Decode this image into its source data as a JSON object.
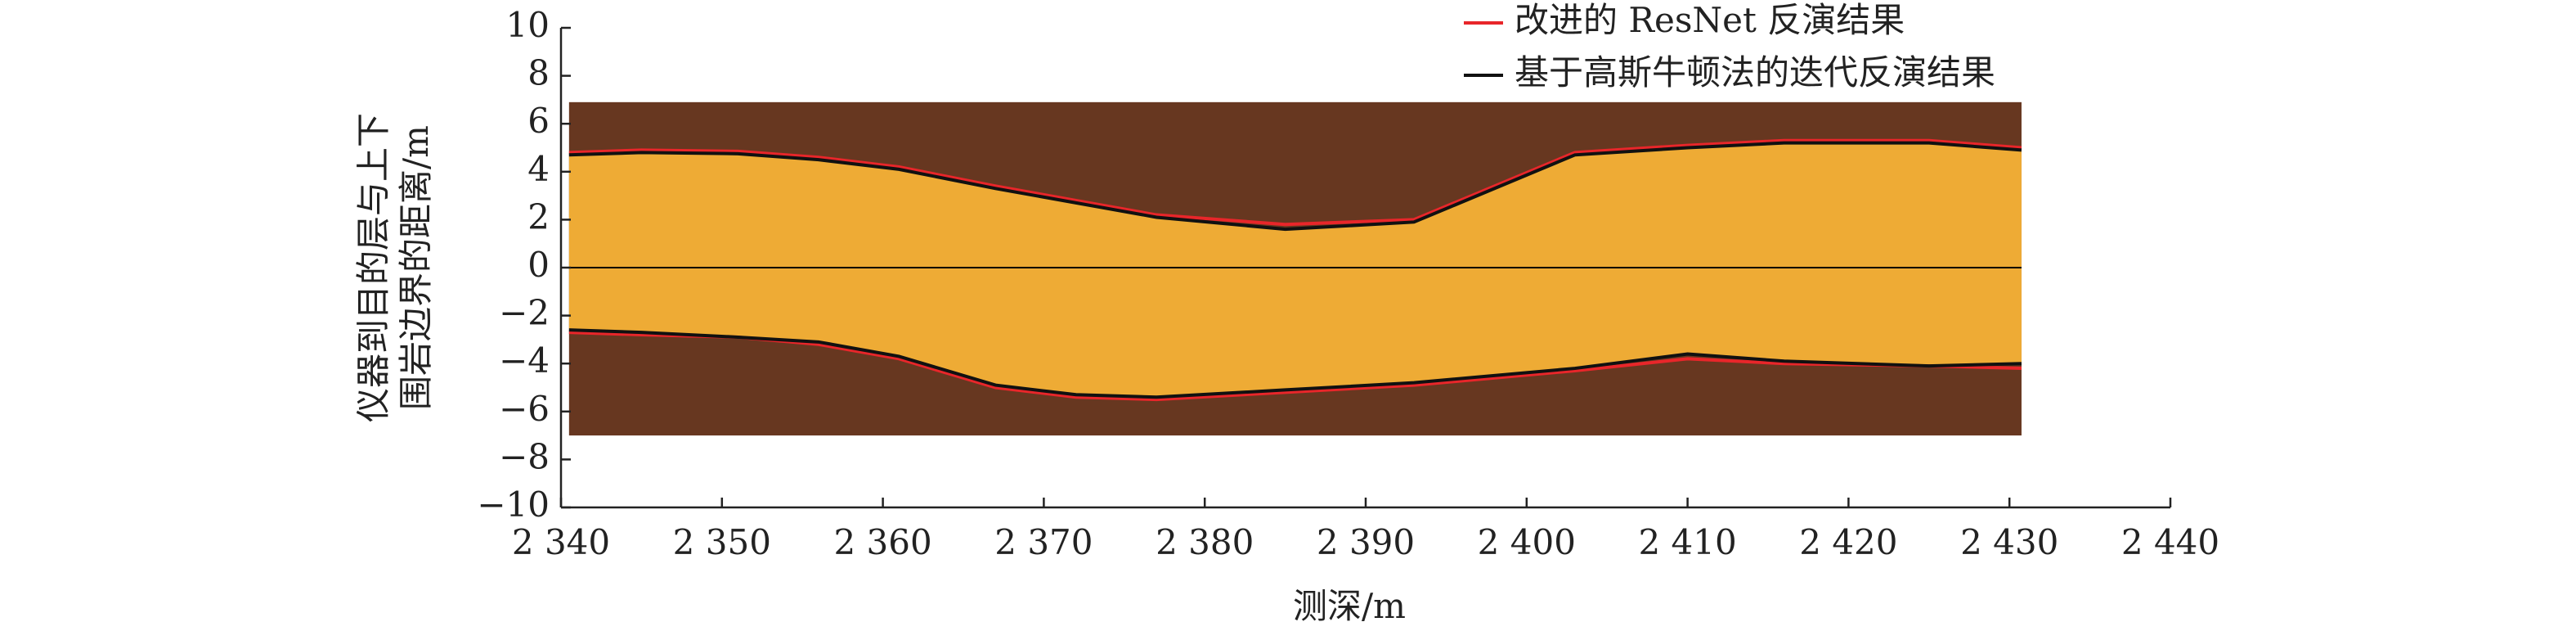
{
  "chart_data": {
    "type": "boundary",
    "xlabel": "测深/m",
    "ylabel": [
      "仪器到目的层与上下",
      "围岩边界的距离/m"
    ],
    "x": [
      2340.5,
      2345,
      2351,
      2356,
      2361,
      2367,
      2372,
      2377,
      2385,
      2393,
      2403,
      2410,
      2416,
      2425,
      2430.75
    ],
    "series": [
      {
        "name": "改进的 ResNet 反演结果",
        "color": "#e8262a",
        "upper": [
          4.8,
          4.9,
          4.85,
          4.6,
          4.2,
          3.4,
          2.8,
          2.2,
          1.8,
          2.0,
          4.8,
          5.1,
          5.3,
          5.3,
          5.0
        ],
        "lower": [
          -2.7,
          -2.8,
          -2.9,
          -3.2,
          -3.8,
          -5.0,
          -5.4,
          -5.5,
          -5.2,
          -4.9,
          -4.3,
          -3.8,
          -4.0,
          -4.1,
          -4.2
        ]
      },
      {
        "name": "基于高斯牛顿法的迭代反演结果",
        "color": "#111111",
        "upper": [
          4.7,
          4.8,
          4.75,
          4.5,
          4.1,
          3.3,
          2.7,
          2.1,
          1.6,
          1.9,
          4.7,
          5.0,
          5.2,
          5.2,
          4.9
        ],
        "lower": [
          -2.6,
          -2.7,
          -2.9,
          -3.1,
          -3.7,
          -4.9,
          -5.3,
          -5.4,
          -5.1,
          -4.8,
          -4.2,
          -3.6,
          -3.9,
          -4.1,
          -4.0
        ]
      }
    ],
    "band": [
      -7,
      6.9
    ],
    "band_color": "#673720",
    "fill_color": "#eeab35",
    "xlim": [
      2340,
      2440
    ],
    "xticks": [
      {
        "value": 2340,
        "label": "2 340"
      },
      {
        "value": 2350,
        "label": "2 350"
      },
      {
        "value": 2360,
        "label": "2 360"
      },
      {
        "value": 2370,
        "label": "2 370"
      },
      {
        "value": 2380,
        "label": "2 380"
      },
      {
        "value": 2390,
        "label": "2 390"
      },
      {
        "value": 2400,
        "label": "2 400"
      },
      {
        "value": 2410,
        "label": "2 410"
      },
      {
        "value": 2420,
        "label": "2 420"
      },
      {
        "value": 2430,
        "label": "2 430"
      },
      {
        "value": 2440,
        "label": "2 440"
      }
    ],
    "ylim": [
      -10,
      10
    ],
    "yticks": [
      {
        "value": -10,
        "label": "−10"
      },
      {
        "value": -8,
        "label": "−8"
      },
      {
        "value": -6,
        "label": "−6"
      },
      {
        "value": -4,
        "label": "−4"
      },
      {
        "value": -2,
        "label": "−2"
      },
      0,
      2,
      4,
      6,
      8,
      10
    ]
  }
}
